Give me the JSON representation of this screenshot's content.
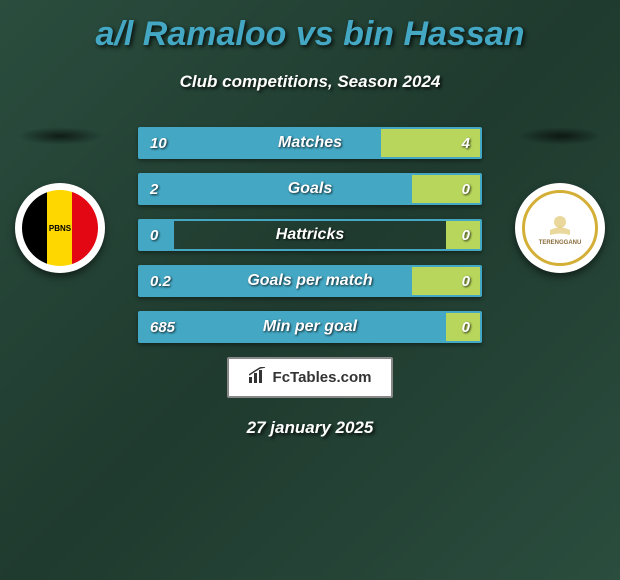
{
  "header": {
    "title": "a/l Ramaloo vs bin Hassan",
    "subtitle": "Club competitions, Season 2024",
    "title_color": "#44a8c4",
    "subtitle_color": "#ffffff"
  },
  "teams": {
    "left": {
      "name": "PBNS",
      "colors": [
        "#000000",
        "#ffd700",
        "#e30613"
      ]
    },
    "right": {
      "name": "TERENGGANU",
      "colors": [
        "#ffffff",
        "#d4af37"
      ]
    }
  },
  "stats": [
    {
      "label": "Matches",
      "left_value": "10",
      "right_value": "4",
      "left_width_pct": 71,
      "right_width_pct": 29
    },
    {
      "label": "Goals",
      "left_value": "2",
      "right_value": "0",
      "left_width_pct": 80,
      "right_width_pct": 20
    },
    {
      "label": "Hattricks",
      "left_value": "0",
      "right_value": "0",
      "left_width_pct": 10,
      "right_width_pct": 10
    },
    {
      "label": "Goals per match",
      "left_value": "0.2",
      "right_value": "0",
      "left_width_pct": 80,
      "right_width_pct": 20
    },
    {
      "label": "Min per goal",
      "left_value": "685",
      "right_value": "0",
      "left_width_pct": 90,
      "right_width_pct": 10
    }
  ],
  "colors": {
    "bar_left": "#44a8c4",
    "bar_right": "#b8d65c",
    "bar_border": "#44a8c4",
    "background_gradient": [
      "#2a4d3e",
      "#1f3a2e"
    ]
  },
  "footer": {
    "logo_text": "FcTables.com",
    "date": "27 january 2025"
  }
}
